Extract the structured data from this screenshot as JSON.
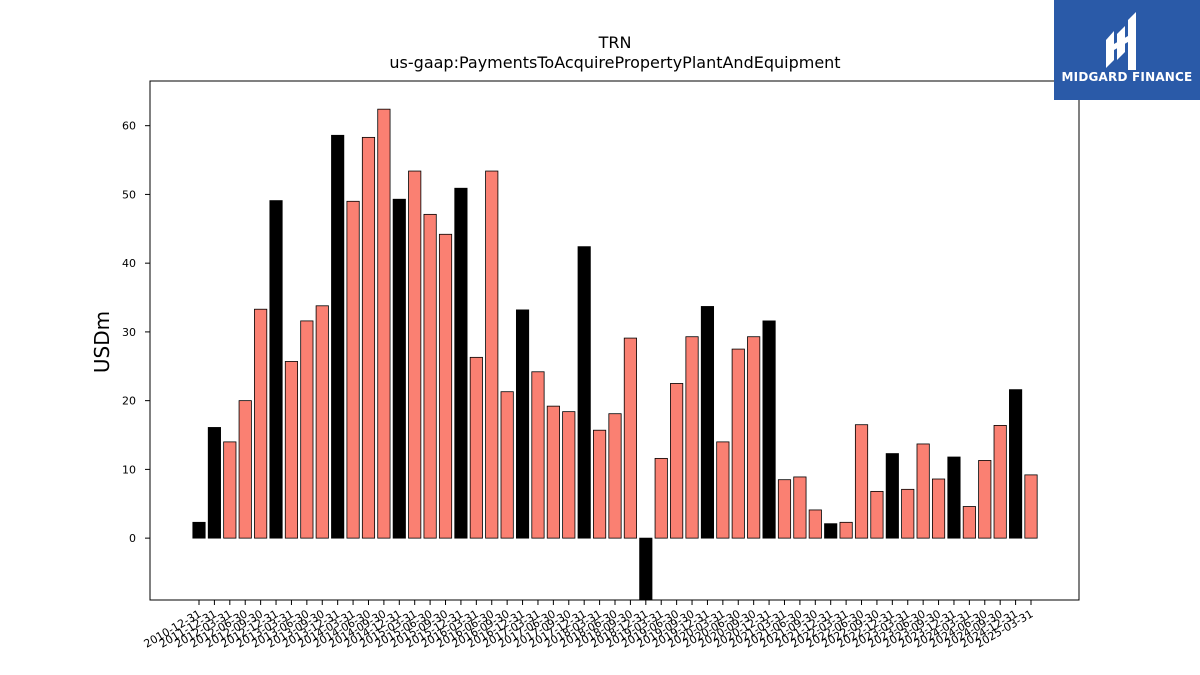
{
  "brand": {
    "name": "MIDGARD FINANCE",
    "bg_color": "#2a5aa8",
    "fg_color": "#ffffff"
  },
  "chart_data": {
    "type": "bar",
    "title": "TRN",
    "subtitle": "us-gaap:PaymentsToAcquirePropertyPlantAndEquipment",
    "xlabel": "",
    "ylabel": "USDm",
    "ylim": [
      -9,
      66.5
    ],
    "yticks": [
      0,
      10,
      20,
      30,
      40,
      50,
      60
    ],
    "grid": false,
    "colors": {
      "annual": "#000000",
      "quarter": "#fa8072",
      "edge": "#000000"
    },
    "categories": [
      "2010-12-31",
      "2011-12-31",
      "2012-03-31",
      "2012-06-30",
      "2012-09-30",
      "2012-12-31",
      "2013-03-31",
      "2013-06-30",
      "2013-09-30",
      "2013-12-31",
      "2014-03-31",
      "2014-06-30",
      "2014-09-30",
      "2014-12-31",
      "2015-03-31",
      "2015-06-30",
      "2015-09-30",
      "2015-12-31",
      "2016-03-31",
      "2016-06-30",
      "2016-09-30",
      "2016-12-31",
      "2017-03-31",
      "2017-06-30",
      "2017-09-30",
      "2017-12-31",
      "2018-03-31",
      "2018-06-30",
      "2018-09-30",
      "2018-12-31",
      "2019-03-31",
      "2019-06-30",
      "2019-09-30",
      "2019-12-31",
      "2020-03-31",
      "2020-06-30",
      "2020-09-30",
      "2020-12-31",
      "2021-03-31",
      "2021-06-30",
      "2021-09-30",
      "2021-12-31",
      "2022-03-31",
      "2022-06-30",
      "2022-09-30",
      "2022-12-31",
      "2023-03-31",
      "2023-06-30",
      "2023-09-30",
      "2023-12-31",
      "2024-03-31",
      "2024-06-30",
      "2024-09-30",
      "2024-12-31",
      "2025-03-31"
    ],
    "values": [
      2.3,
      16.1,
      14.0,
      20.0,
      33.3,
      49.1,
      25.7,
      31.6,
      33.8,
      58.6,
      49.0,
      58.3,
      62.4,
      49.3,
      53.4,
      47.1,
      44.2,
      50.9,
      26.3,
      53.4,
      21.3,
      33.2,
      24.2,
      19.2,
      18.4,
      42.4,
      15.7,
      18.1,
      29.1,
      -9.5,
      11.6,
      22.5,
      29.3,
      33.7,
      14.0,
      27.5,
      29.3,
      31.6,
      8.5,
      8.9,
      4.1,
      2.1,
      2.3,
      16.5,
      6.8,
      12.3,
      7.1,
      13.7,
      8.6,
      11.8,
      4.6,
      11.3,
      16.4,
      21.6,
      9.2
    ],
    "is_annual": [
      true,
      true,
      false,
      false,
      false,
      true,
      false,
      false,
      false,
      true,
      false,
      false,
      false,
      true,
      false,
      false,
      false,
      true,
      false,
      false,
      false,
      true,
      false,
      false,
      false,
      true,
      false,
      false,
      false,
      true,
      false,
      false,
      false,
      true,
      false,
      false,
      false,
      true,
      false,
      false,
      false,
      true,
      false,
      false,
      false,
      true,
      false,
      false,
      false,
      true,
      false,
      false,
      false,
      true,
      false
    ]
  }
}
